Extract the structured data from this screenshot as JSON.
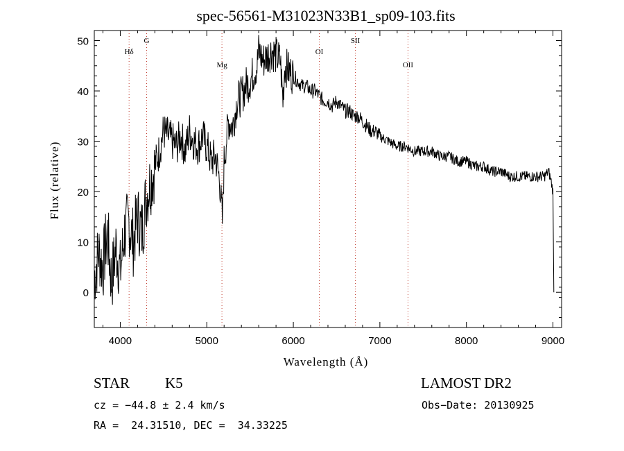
{
  "chart_data": {
    "type": "line",
    "title": "spec-56561-M31023N33B1_sp09-103.fits",
    "xlabel": "Wavelength (Å)",
    "ylabel": "Flux (relative)",
    "xlim": [
      3700,
      9100
    ],
    "ylim": [
      -7,
      52
    ],
    "xticks": [
      4000,
      5000,
      6000,
      7000,
      8000,
      9000
    ],
    "yticks": [
      0,
      10,
      20,
      30,
      40,
      50
    ],
    "grid": false,
    "series": [
      {
        "x": [
          3700,
          3750,
          3800,
          3850,
          3900,
          3950,
          4000,
          4050,
          4100,
          4150,
          4200,
          4250,
          4300,
          4350,
          4400,
          4450,
          4500,
          4550,
          4600,
          4650,
          4700,
          4750,
          4800,
          4850,
          4900,
          4950,
          5000,
          5050,
          5100,
          5150,
          5180,
          5200,
          5250,
          5300,
          5350,
          5400,
          5450,
          5500,
          5550,
          5580,
          5600,
          5650,
          5700,
          5750,
          5800,
          5850,
          5880,
          5900,
          5950,
          6000,
          6050,
          6100,
          6150,
          6200,
          6250,
          6300,
          6350,
          6400,
          6450,
          6500,
          6550,
          6600,
          6650,
          6700,
          6750,
          6800,
          6850,
          6900,
          6950,
          7000,
          7100,
          7200,
          7300,
          7400,
          7500,
          7600,
          7700,
          7800,
          7900,
          8000,
          8100,
          8200,
          8300,
          8400,
          8500,
          8600,
          8700,
          8800,
          8850,
          8900,
          8950,
          8980,
          9000,
          9010
        ],
        "y": [
          3,
          8,
          5,
          12,
          2,
          9,
          4,
          12,
          14,
          10,
          15,
          12,
          19,
          22,
          25,
          28,
          32,
          31,
          30,
          29,
          31,
          28,
          32,
          30,
          29,
          31,
          29,
          26,
          27,
          22,
          14,
          26,
          34,
          33,
          38,
          39,
          41,
          42,
          44,
          45,
          48,
          46,
          47,
          48,
          47,
          46,
          38,
          45,
          44,
          43,
          42,
          41,
          41,
          40,
          40,
          39,
          38,
          38,
          37,
          38,
          37,
          36,
          36,
          35,
          35,
          34,
          33,
          32,
          32,
          31,
          30,
          29,
          29,
          28,
          28,
          28,
          27,
          27,
          26,
          26,
          25,
          25,
          24,
          24,
          23,
          23,
          23,
          23,
          23,
          23,
          24,
          22,
          20,
          0
        ]
      }
    ],
    "lines": [
      {
        "label": "Hδ",
        "x": 4102
      },
      {
        "label": "G",
        "x": 4305
      },
      {
        "label": "Mg",
        "x": 5175
      },
      {
        "label": "OI",
        "x": 6300
      },
      {
        "label": "SII",
        "x": 6717
      },
      {
        "label": "OII",
        "x": 7325
      }
    ]
  },
  "info": {
    "object_class": "STAR",
    "subclass": "K5",
    "survey": "LAMOST DR2",
    "redshift_line": "cz = −44.8 ± 2.4 km/s",
    "obs_date_line": "Obs−Date: 20130925",
    "coords_line": "RA =  24.31510, DEC =  34.33225"
  }
}
